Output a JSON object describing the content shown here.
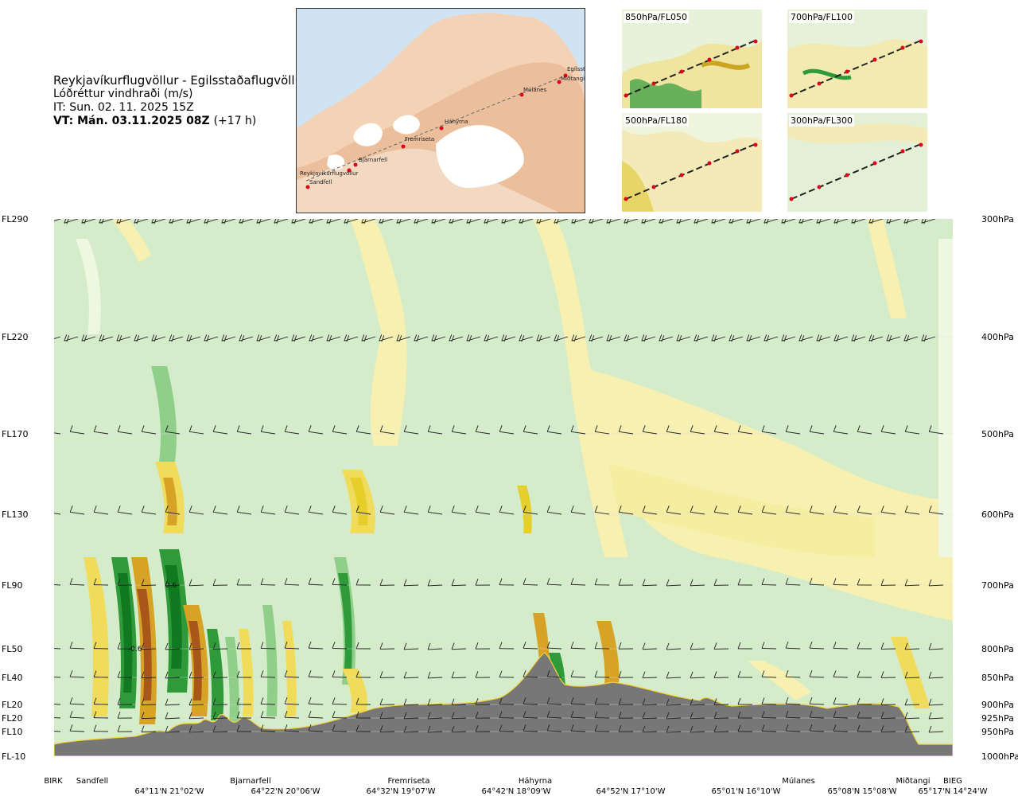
{
  "header": {
    "route": "Reykjavíkurflugvöllur - Egilsstaðaflugvöllur",
    "variable": "Lóðréttur vindhraði (m/s)",
    "init_time": "IT: Sun. 02. 11. 2025 15Z",
    "valid_time": "VT: Mán. 03.11.2025 08Z",
    "lead": "(+17 h)"
  },
  "map": {
    "stations": [
      "Reykjavíkurflugvöllur",
      "Sandfell",
      "Bjarnarfell",
      "Fremriseta",
      "Háhyrna",
      "Múlanes",
      "Miðtangi",
      "Egilsst"
    ]
  },
  "thumbnails": [
    {
      "label": "850hPa/FL050"
    },
    {
      "label": "700hPa/FL100"
    },
    {
      "label": "500hPa/FL180"
    },
    {
      "label": "300hPa/FL300"
    }
  ],
  "chart_data": {
    "type": "heatmap",
    "title": "Lóðréttur vindhraði (m/s)",
    "left_axis_labels": [
      "FL290",
      "FL220",
      "FL170",
      "FL130",
      "FL90",
      "FL50",
      "FL40",
      "FL20",
      "FL20",
      "FL10",
      "FL-10"
    ],
    "right_axis_labels": [
      "300hPa",
      "400hPa",
      "500hPa",
      "600hPa",
      "700hPa",
      "800hPa",
      "850hPa",
      "900hPa",
      "925hPa",
      "950hPa",
      "1000hPa"
    ],
    "pressure_levels_hPa": [
      300,
      400,
      500,
      600,
      700,
      800,
      850,
      900,
      925,
      950,
      1000
    ],
    "x_stations": [
      "BIRK",
      "Sandfell",
      "Bjarnarfell",
      "Fremriseta",
      "Háhyrna",
      "Múlanes",
      "Miðtangi",
      "BIEG"
    ],
    "x_coordinates": [
      "64°11'N 21°02'W",
      "64°22'N 20°06'W",
      "64°32'N 19°07'W",
      "64°42'N 18°09'W",
      "64°52'N 17°10'W",
      "65°01'N 16°10'W",
      "65°08'N 15°08'W",
      "65°17'N 14°24'W"
    ],
    "contour_labels": [
      {
        "text": "0.6",
        "x_station_fraction": 0.13,
        "level_hPa": 700
      },
      {
        "text": "-0.6",
        "x_station_fraction": 0.09,
        "level_hPa": 800
      }
    ],
    "colors": {
      "strong_up": "#0f7a1f",
      "up": "#2e9a3a",
      "weak_up": "#8fcf8a",
      "faint_up": "#cfeacb",
      "neutral": "#eef7df",
      "faint_down": "#f7f0b0",
      "down": "#ebd843",
      "strong_down": "#d7a326",
      "very_strong_down": "#a8561a",
      "terrain": "#777777"
    }
  }
}
